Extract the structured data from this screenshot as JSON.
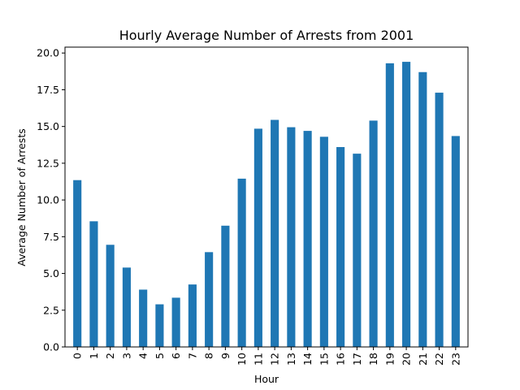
{
  "chart_data": {
    "type": "bar",
    "title": "Hourly Average Number of Arrests from 2001",
    "xlabel": "Hour",
    "ylabel": "Average Number of Arrests",
    "categories": [
      "0",
      "1",
      "2",
      "3",
      "4",
      "5",
      "6",
      "7",
      "8",
      "9",
      "10",
      "11",
      "12",
      "13",
      "14",
      "15",
      "16",
      "17",
      "18",
      "19",
      "20",
      "21",
      "22",
      "23"
    ],
    "values": [
      11.35,
      8.55,
      6.95,
      5.4,
      3.9,
      2.9,
      3.35,
      4.25,
      6.45,
      8.25,
      11.45,
      14.85,
      15.45,
      14.95,
      14.7,
      14.3,
      13.6,
      13.15,
      15.4,
      19.3,
      19.4,
      18.7,
      17.3,
      14.35
    ],
    "ylim": [
      0,
      20.4
    ],
    "yticks": [
      0.0,
      2.5,
      5.0,
      7.5,
      10.0,
      12.5,
      15.0,
      17.5,
      20.0
    ],
    "ytick_labels": [
      "0.0",
      "2.5",
      "5.0",
      "7.5",
      "10.0",
      "12.5",
      "15.0",
      "17.5",
      "20.0"
    ],
    "bar_color": "#1f77b4",
    "grid": false,
    "legend": "none"
  }
}
